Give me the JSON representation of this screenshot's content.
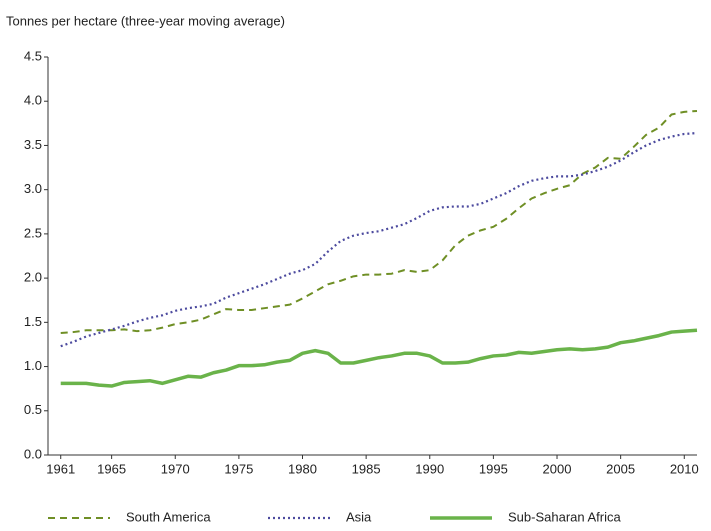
{
  "chart_data": {
    "type": "line",
    "title": "Tonnes per hectare (three-year moving average)",
    "x": [
      1961,
      1962,
      1963,
      1964,
      1965,
      1966,
      1967,
      1968,
      1969,
      1970,
      1971,
      1972,
      1973,
      1974,
      1975,
      1976,
      1977,
      1978,
      1979,
      1980,
      1981,
      1982,
      1983,
      1984,
      1985,
      1986,
      1987,
      1988,
      1989,
      1990,
      1991,
      1992,
      1993,
      1994,
      1995,
      1996,
      1997,
      1998,
      1999,
      2000,
      2001,
      2002,
      2003,
      2004,
      2005,
      2006,
      2007,
      2008,
      2009,
      2010,
      2011
    ],
    "series": [
      {
        "name": "South America",
        "color": "#6f8f25",
        "style": "dashed",
        "values": [
          1.38,
          1.39,
          1.41,
          1.41,
          1.41,
          1.42,
          1.4,
          1.41,
          1.44,
          1.48,
          1.5,
          1.53,
          1.59,
          1.65,
          1.64,
          1.64,
          1.66,
          1.68,
          1.7,
          1.77,
          1.85,
          1.93,
          1.97,
          2.02,
          2.04,
          2.04,
          2.05,
          2.09,
          2.07,
          2.09,
          2.2,
          2.37,
          2.48,
          2.54,
          2.58,
          2.67,
          2.79,
          2.9,
          2.96,
          3.01,
          3.05,
          3.18,
          3.25,
          3.36,
          3.35,
          3.48,
          3.62,
          3.7,
          3.85,
          3.88,
          3.89
        ]
      },
      {
        "name": "Asia",
        "color": "#4c4a9e",
        "style": "dotted",
        "values": [
          1.23,
          1.28,
          1.34,
          1.38,
          1.42,
          1.46,
          1.51,
          1.55,
          1.58,
          1.63,
          1.66,
          1.68,
          1.71,
          1.78,
          1.83,
          1.88,
          1.93,
          1.99,
          2.05,
          2.09,
          2.16,
          2.3,
          2.42,
          2.48,
          2.51,
          2.53,
          2.57,
          2.61,
          2.68,
          2.76,
          2.8,
          2.81,
          2.81,
          2.84,
          2.9,
          2.96,
          3.04,
          3.1,
          3.13,
          3.15,
          3.15,
          3.17,
          3.21,
          3.26,
          3.33,
          3.42,
          3.5,
          3.56,
          3.6,
          3.63,
          3.64
        ]
      },
      {
        "name": "Sub-Saharan Africa",
        "color": "#6ab34a",
        "style": "solid",
        "values": [
          0.81,
          0.81,
          0.81,
          0.79,
          0.78,
          0.82,
          0.83,
          0.84,
          0.81,
          0.85,
          0.89,
          0.88,
          0.93,
          0.96,
          1.01,
          1.01,
          1.02,
          1.05,
          1.07,
          1.15,
          1.18,
          1.15,
          1.04,
          1.04,
          1.07,
          1.1,
          1.12,
          1.15,
          1.15,
          1.12,
          1.04,
          1.04,
          1.05,
          1.09,
          1.12,
          1.13,
          1.16,
          1.15,
          1.17,
          1.19,
          1.2,
          1.19,
          1.2,
          1.22,
          1.27,
          1.29,
          1.32,
          1.35,
          1.39,
          1.4,
          1.41
        ]
      }
    ],
    "xlim": [
      1960,
      2011
    ],
    "xticks": [
      1961,
      1965,
      1970,
      1975,
      1980,
      1985,
      1990,
      1995,
      2000,
      2005,
      2010
    ],
    "ylim": [
      0,
      4.5
    ],
    "yticks": [
      {
        "value": 0,
        "label": "0.0"
      },
      0.5,
      {
        "value": 1,
        "label": "1.0"
      },
      1.5,
      {
        "value": 2,
        "label": "2.0"
      },
      2.5,
      {
        "value": 3,
        "label": "3.0"
      },
      3.5,
      {
        "value": 4,
        "label": "4.0"
      },
      4.5
    ],
    "grid": false,
    "legend": "bottom"
  }
}
